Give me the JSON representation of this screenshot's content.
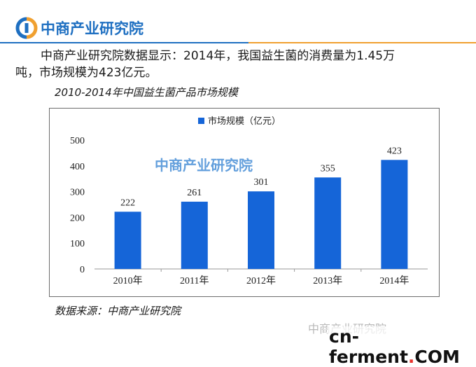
{
  "brand": {
    "name": "中商产业研究院"
  },
  "lead": {
    "line1": "中商产业研究院数据显示：2014年，我国益生菌的消费量为1.45万",
    "line2": "吨，市场规模为423亿元。"
  },
  "chart_title": "2010-2014年中国益生菌产品市场规模",
  "source": "数据来源：中商产业研究院",
  "watermark": {
    "text": "中商产业研究院",
    "site": "cn-ferment",
    "dot": ".",
    "tld": "COM"
  },
  "colors": {
    "bar": "#1565d8",
    "brand": "#1e6fc1",
    "accent": "#f0a030"
  },
  "chart_data": {
    "type": "bar",
    "categories": [
      "2010年",
      "2011年",
      "2012年",
      "2013年",
      "2014年"
    ],
    "series": [
      {
        "name": "市场规模（亿元）",
        "values": [
          222,
          261,
          301,
          355,
          423
        ]
      }
    ],
    "ylim": [
      0,
      500
    ],
    "yticks": [
      0,
      100,
      200,
      300,
      400,
      500
    ],
    "grid": false,
    "legend": "top-center",
    "watermark_text": "中商产业研究院"
  }
}
